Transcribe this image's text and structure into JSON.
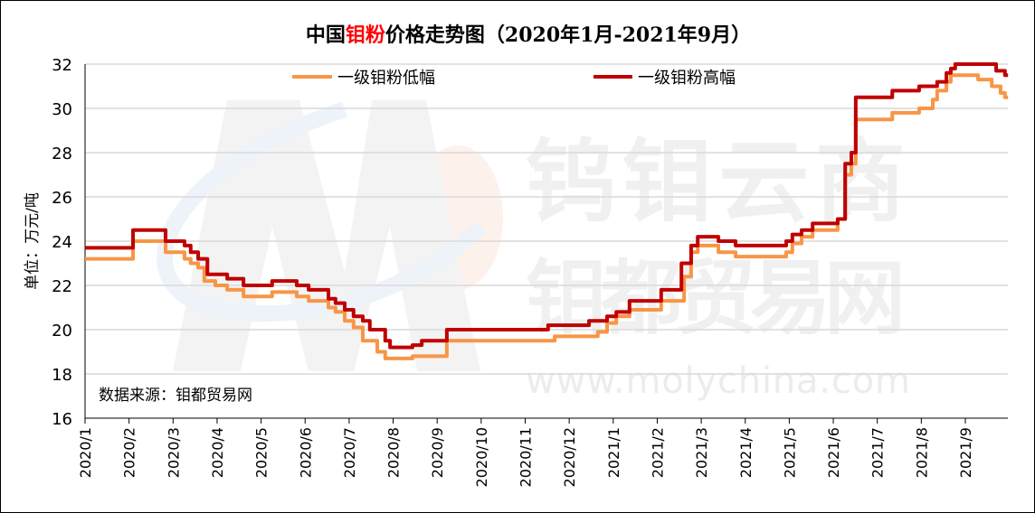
{
  "chart_data": {
    "type": "line",
    "title_parts": [
      "中国",
      "钼粉",
      "价格走势图（2020年1月-2021年9月）"
    ],
    "title_accent_color": "#ff0000",
    "ylabel": "单位：万元/吨",
    "ylim": [
      16,
      32
    ],
    "yticks": [
      "16",
      "18",
      "20",
      "22",
      "24",
      "26",
      "28",
      "30",
      "32"
    ],
    "xticks": [
      "2020/1",
      "2020/2",
      "2020/3",
      "2020/4",
      "2020/5",
      "2020/6",
      "2020/7",
      "2020/8",
      "2020/9",
      "2020/10",
      "2020/11",
      "2020/12",
      "2021/1",
      "2021/2",
      "2021/3",
      "2021/4",
      "2021/5",
      "2021/6",
      "2021/7",
      "2021/8",
      "2021/9"
    ],
    "x_unit": "months since 2020/1",
    "xlim": [
      0,
      20.97
    ],
    "grid": true,
    "legend_placement": "top",
    "source_note": "数据来源：钼都贸易网",
    "watermark": [
      "钨钼云商",
      "钼都贸易网",
      "www.molychina.com"
    ],
    "series": [
      {
        "name": "一级钼粉低幅",
        "color": "#f79646",
        "steps": [
          [
            0,
            23.2
          ],
          [
            1.09,
            24.0
          ],
          [
            1.83,
            23.5
          ],
          [
            2.26,
            23.2
          ],
          [
            2.4,
            23.0
          ],
          [
            2.57,
            22.8
          ],
          [
            2.71,
            22.2
          ],
          [
            2.96,
            22.0
          ],
          [
            3.23,
            21.8
          ],
          [
            3.6,
            21.5
          ],
          [
            4.25,
            21.7
          ],
          [
            4.81,
            21.5
          ],
          [
            5.08,
            21.3
          ],
          [
            5.53,
            21.0
          ],
          [
            5.69,
            20.8
          ],
          [
            5.9,
            20.4
          ],
          [
            6.1,
            20.1
          ],
          [
            6.31,
            19.5
          ],
          [
            6.64,
            19.0
          ],
          [
            6.82,
            18.7
          ],
          [
            7.44,
            18.8
          ],
          [
            8.22,
            19.5
          ],
          [
            10.67,
            19.7
          ],
          [
            11.65,
            19.9
          ],
          [
            11.86,
            20.3
          ],
          [
            12.07,
            20.6
          ],
          [
            12.37,
            20.9
          ],
          [
            13.09,
            21.3
          ],
          [
            13.61,
            22.4
          ],
          [
            13.77,
            23.5
          ],
          [
            13.92,
            23.8
          ],
          [
            14.39,
            23.5
          ],
          [
            14.78,
            23.3
          ],
          [
            15.93,
            23.5
          ],
          [
            16.07,
            23.9
          ],
          [
            16.28,
            24.2
          ],
          [
            16.53,
            24.5
          ],
          [
            17.1,
            25.0
          ],
          [
            17.27,
            27.0
          ],
          [
            17.41,
            27.5
          ],
          [
            17.51,
            29.5
          ],
          [
            18.34,
            29.8
          ],
          [
            18.95,
            30.0
          ],
          [
            19.26,
            30.4
          ],
          [
            19.36,
            30.8
          ],
          [
            19.57,
            31.2
          ],
          [
            19.67,
            31.5
          ],
          [
            20.29,
            31.3
          ],
          [
            20.6,
            31.0
          ],
          [
            20.8,
            30.7
          ],
          [
            20.9,
            30.5
          ],
          [
            20.97,
            30.5
          ]
        ]
      },
      {
        "name": "一级钼粉高幅",
        "color": "#c00000",
        "steps": [
          [
            0,
            23.7
          ],
          [
            1.09,
            24.5
          ],
          [
            1.83,
            24.0
          ],
          [
            2.26,
            23.8
          ],
          [
            2.4,
            23.5
          ],
          [
            2.57,
            23.2
          ],
          [
            2.78,
            22.5
          ],
          [
            3.23,
            22.3
          ],
          [
            3.6,
            22.0
          ],
          [
            4.25,
            22.2
          ],
          [
            4.81,
            22.0
          ],
          [
            5.08,
            21.8
          ],
          [
            5.53,
            21.4
          ],
          [
            5.69,
            21.2
          ],
          [
            5.9,
            20.9
          ],
          [
            6.1,
            20.6
          ],
          [
            6.31,
            20.4
          ],
          [
            6.47,
            20.0
          ],
          [
            6.82,
            19.5
          ],
          [
            6.93,
            19.2
          ],
          [
            7.44,
            19.3
          ],
          [
            7.65,
            19.5
          ],
          [
            8.22,
            20.0
          ],
          [
            10.52,
            20.2
          ],
          [
            11.45,
            20.4
          ],
          [
            11.86,
            20.6
          ],
          [
            12.07,
            20.8
          ],
          [
            12.37,
            21.3
          ],
          [
            13.09,
            21.8
          ],
          [
            13.55,
            23.0
          ],
          [
            13.77,
            23.8
          ],
          [
            13.92,
            24.2
          ],
          [
            14.39,
            24.0
          ],
          [
            14.78,
            23.8
          ],
          [
            15.93,
            24.0
          ],
          [
            16.07,
            24.3
          ],
          [
            16.28,
            24.5
          ],
          [
            16.53,
            24.8
          ],
          [
            17.1,
            25.0
          ],
          [
            17.27,
            27.5
          ],
          [
            17.41,
            28.0
          ],
          [
            17.51,
            30.5
          ],
          [
            18.34,
            30.8
          ],
          [
            18.95,
            31.0
          ],
          [
            19.36,
            31.2
          ],
          [
            19.57,
            31.6
          ],
          [
            19.67,
            31.8
          ],
          [
            19.77,
            32.0
          ],
          [
            20.7,
            31.7
          ],
          [
            20.9,
            31.5
          ],
          [
            20.97,
            31.5
          ]
        ]
      }
    ]
  }
}
